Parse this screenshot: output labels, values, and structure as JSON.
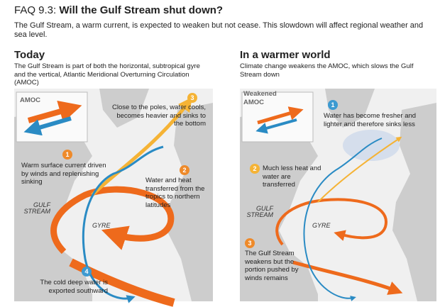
{
  "header": {
    "faq": "FAQ 9.3:",
    "title": "Will the Gulf Stream shut down?",
    "subtitle": "The Gulf Stream, a warm current, is expected to weaken but not cease. This slowdown will affect regional weather and sea level."
  },
  "panels": [
    {
      "heading": "Today",
      "description": "The Gulf Stream is part of both the horizontal, subtropical gyre and the vertical, Atlantic Meridional Overturning Circulation (AMOC)",
      "box_label": "AMOC",
      "callouts": [
        {
          "number": "1",
          "text": "Warm surface current driven by winds and replenishing sinking"
        },
        {
          "number": "2",
          "text": "Water and heat transferred from the tropics to northern latitudes"
        },
        {
          "number": "3",
          "text": "Close to the poles, water cools, becomes heavier and sinks to the bottom"
        },
        {
          "number": "4",
          "text": "The cold deep water is exported southward"
        }
      ],
      "map_labels": {
        "gulf_stream": "GULF STREAM",
        "gyre": "GYRE"
      }
    },
    {
      "heading": "In a warmer world",
      "description": "Climate change weakens the AMOC, which slows the Gulf Stream down",
      "box_label": "Weakened AMOC",
      "callouts": [
        {
          "number": "1",
          "text": "Water has become fresher and lighter and therefore sinks less"
        },
        {
          "number": "2",
          "text": "Much less heat and water are transferred"
        },
        {
          "number": "3",
          "text": "The Gulf Stream weakens but the portion pushed by winds remains"
        }
      ],
      "map_labels": {
        "gulf_stream": "GULF STREAM",
        "gyre": "GYRE"
      }
    }
  ]
}
